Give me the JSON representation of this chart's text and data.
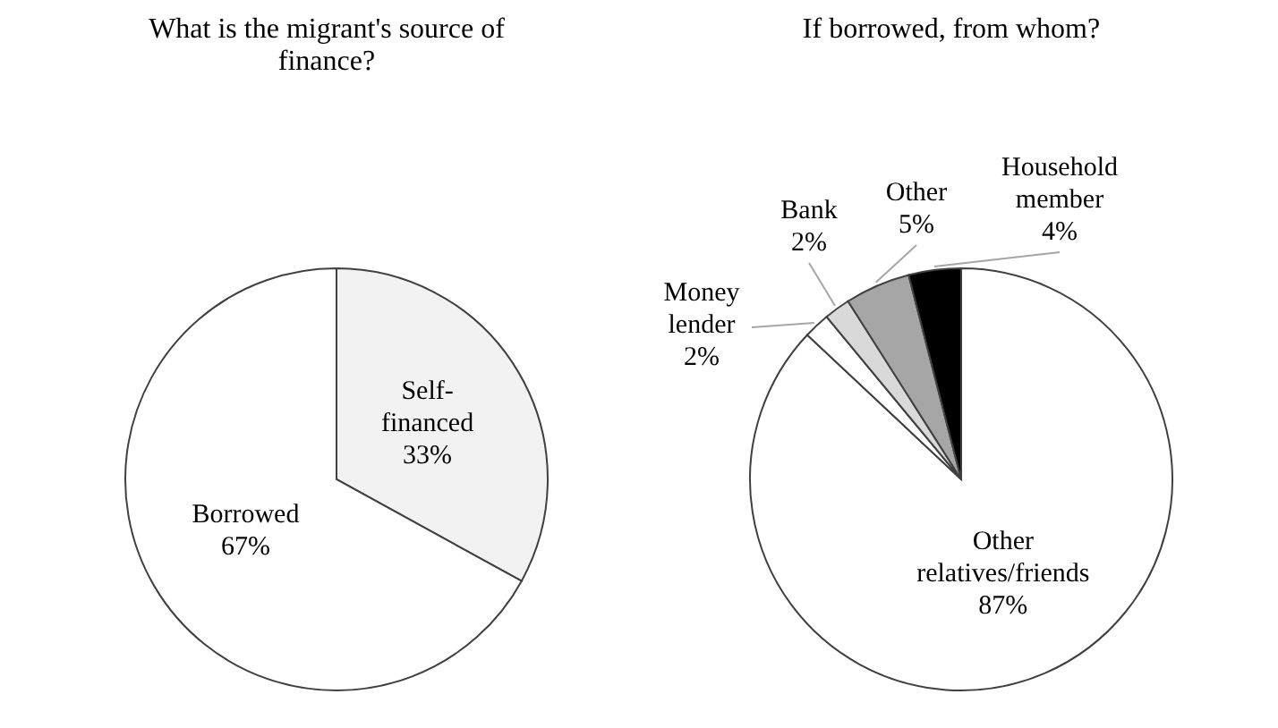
{
  "chart_data": [
    {
      "type": "pie",
      "title": "What is the migrant's source of finance?",
      "categories": [
        "Self-financed",
        "Borrowed"
      ],
      "values": [
        33,
        67
      ],
      "value_labels": [
        "33%",
        "67%"
      ],
      "colors": [
        "#f2f2f2",
        "#ffffff"
      ],
      "legend": false
    },
    {
      "type": "pie",
      "title": "If borrowed, from whom?",
      "categories": [
        "Other relatives/friends",
        "Money lender",
        "Bank",
        "Other",
        "Household member"
      ],
      "values": [
        87,
        2,
        2,
        5,
        4
      ],
      "value_labels": [
        "87%",
        "2%",
        "2%",
        "5%",
        "4%"
      ],
      "colors": [
        "#ffffff",
        "#ffffff",
        "#d9d9d9",
        "#a6a6a6",
        "#000000"
      ],
      "legend": false
    }
  ]
}
